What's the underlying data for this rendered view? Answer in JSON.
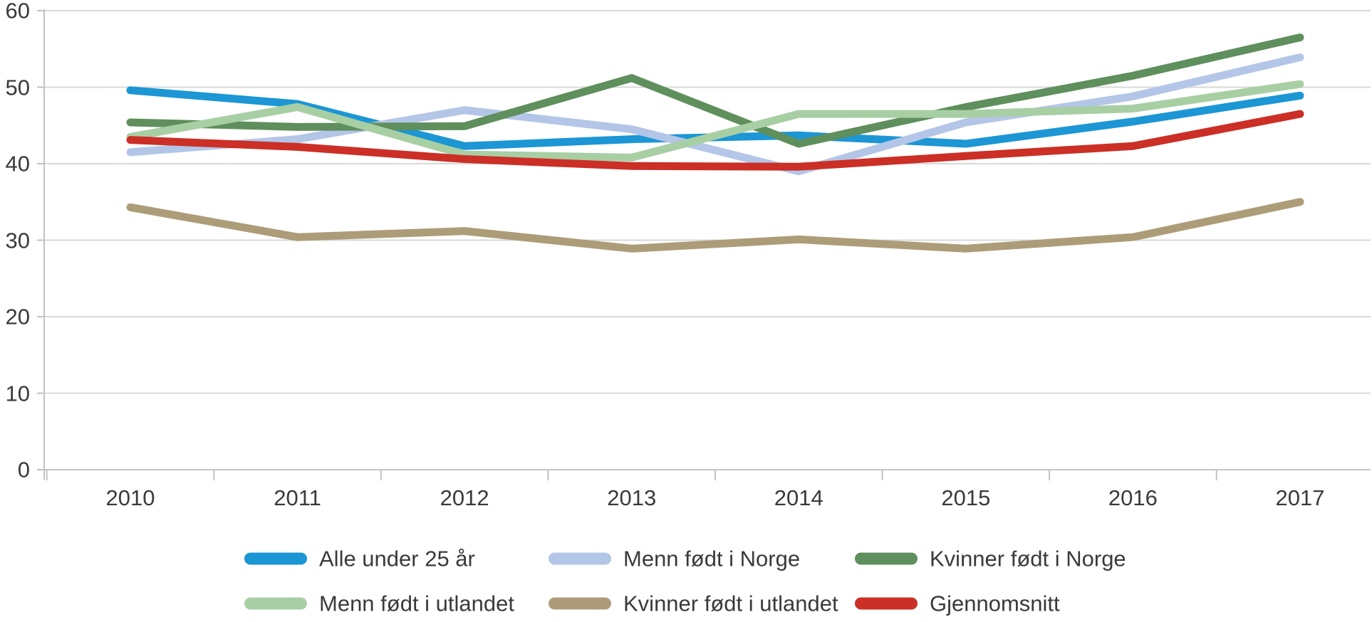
{
  "chart_data": {
    "type": "line",
    "title": "",
    "xlabel": "",
    "ylabel": "",
    "categories": [
      "2010",
      "2011",
      "2012",
      "2013",
      "2014",
      "2015",
      "2016",
      "2017"
    ],
    "series": [
      {
        "name": "Alle under 25 år",
        "color": "#1C96D4",
        "values": [
          49.6,
          47.8,
          42.3,
          43.2,
          43.7,
          42.6,
          45.5,
          48.9
        ]
      },
      {
        "name": "Menn født i Norge",
        "color": "#B3C6E8",
        "values": [
          41.5,
          43.2,
          47.0,
          44.5,
          39.0,
          45.4,
          48.8,
          53.9
        ]
      },
      {
        "name": "Kvinner født i Norge",
        "color": "#5F8F5C",
        "values": [
          45.4,
          44.8,
          44.9,
          51.2,
          42.6,
          47.4,
          51.5,
          56.5
        ]
      },
      {
        "name": "Menn født i utlandet",
        "color": "#A8CFA4",
        "values": [
          43.5,
          47.4,
          41.2,
          40.8,
          46.5,
          46.5,
          47.2,
          50.4
        ]
      },
      {
        "name": "Kvinner født i utlandet",
        "color": "#AD9C78",
        "values": [
          34.3,
          30.4,
          31.2,
          28.9,
          30.1,
          28.9,
          30.4,
          35.0
        ]
      },
      {
        "name": "Gjennomsnitt",
        "color": "#CB2F26",
        "values": [
          43.1,
          42.2,
          40.6,
          39.7,
          39.6,
          41.0,
          42.3,
          46.5
        ]
      }
    ],
    "ylim": [
      0,
      60
    ],
    "yticks": [
      0,
      10,
      20,
      30,
      40,
      50,
      60
    ],
    "grid": "horizontal-only",
    "legend_position": "bottom",
    "legend_rows": [
      [
        "Alle under 25 år",
        "Menn født i Norge",
        "Kvinner født i Norge"
      ],
      [
        "Menn født i utlandet",
        "Kvinner født i utlandet",
        "Gjennomsnitt"
      ]
    ],
    "styles": {
      "background": "#FFFFFF",
      "grid_color": "#D9D9D9",
      "axis_color": "#C2C2C2",
      "text_color": "#3A3A39"
    }
  }
}
